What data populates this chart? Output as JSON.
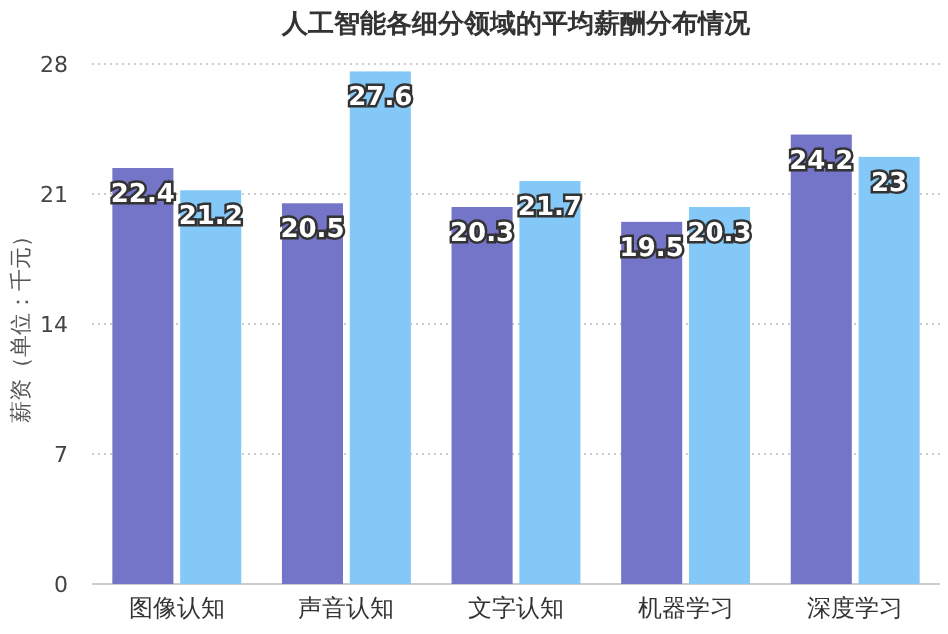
{
  "chart_data": {
    "type": "bar",
    "title": "人工智能各细分领域的平均薪酬分布情况",
    "ylabel": "薪资（单位：千元）",
    "categories": [
      "图像认知",
      "声音认知",
      "文字认知",
      "机器学习",
      "深度学习"
    ],
    "series": [
      {
        "color": "#7474c9",
        "values": [
          22.4,
          20.5,
          20.3,
          19.5,
          24.2
        ]
      },
      {
        "color": "#84c8f7",
        "values": [
          21.2,
          27.6,
          21.7,
          20.3,
          23
        ]
      }
    ],
    "ylim": [
      0,
      28
    ],
    "yticks": [
      0,
      7,
      14,
      21,
      28
    ],
    "grid": "y",
    "data_labels": true
  }
}
